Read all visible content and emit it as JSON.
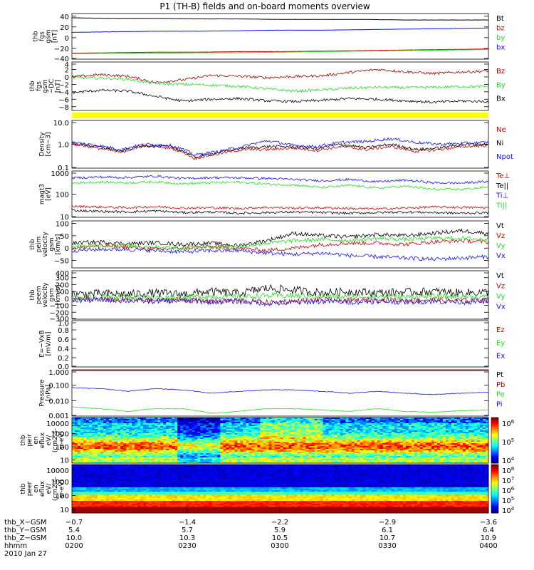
{
  "title": "P1 (TH-B) fields and on-board moments overview",
  "colors": {
    "black": "#000000",
    "red": "#d00000",
    "green": "#22dd22",
    "blue": "#1010ff",
    "darkred": "#9a0000",
    "yellow": "#ffff00"
  },
  "chart_data": [
    {
      "type": "line",
      "id": "fgs",
      "ylabel": [
        "thb",
        "fgs",
        "gsm",
        "[nT]"
      ],
      "yticks": [
        "40",
        "20",
        "0",
        "−20",
        "−40"
      ],
      "ylim": [
        -40,
        45
      ],
      "series": [
        {
          "name": "Bt",
          "color": "black",
          "values": [
            37,
            36,
            36,
            35,
            35,
            34,
            34,
            34,
            33,
            33,
            33
          ]
        },
        {
          "name": "bz",
          "color": "red",
          "values": [
            -29,
            -28,
            -27,
            -27,
            -26,
            -26,
            -25,
            -24,
            -23,
            -22,
            -21
          ]
        },
        {
          "name": "by",
          "color": "green",
          "values": [
            -30,
            -29,
            -29,
            -28,
            -28,
            -27,
            -26,
            -25,
            -24,
            -23,
            -22
          ]
        },
        {
          "name": "bx",
          "color": "blue",
          "values": [
            10,
            11,
            12,
            12,
            13,
            14,
            14,
            15,
            16,
            17,
            18
          ]
        }
      ]
    },
    {
      "type": "line",
      "id": "fgs-dif",
      "ylabel": [
        "thb",
        "fgs",
        "gsm",
        "−DC",
        "[nT]"
      ],
      "yticks": [
        "4",
        "2",
        "0",
        "−2",
        "−4",
        "−6",
        "−8"
      ],
      "ylim": [
        -9,
        4
      ],
      "series": [
        {
          "name": "Bz",
          "color": "darkred",
          "values": [
            0,
            0.6,
            0.2,
            -1.5,
            -0.8,
            0.4,
            0.2,
            -0.2,
            0.1,
            0.3,
            1.2,
            2.0,
            1.4,
            0.9,
            1.3,
            1.6
          ]
        },
        {
          "name": "By",
          "color": "green",
          "values": [
            -0.2,
            -0.3,
            -0.6,
            -1.8,
            -2.0,
            -2.2,
            -2.5,
            -3.2,
            -3.8,
            -3.5,
            -3.0,
            -2.8,
            -2.9,
            -2.8,
            -2.6,
            -2.6
          ]
        },
        {
          "name": "Bx",
          "color": "black",
          "values": [
            -4.2,
            -3.6,
            -3.8,
            -5.2,
            -6.5,
            -6.0,
            -5.8,
            -6.4,
            -6.6,
            -6.3,
            -5.8,
            -6.0,
            -6.4,
            -6.8,
            -6.5,
            -6.6
          ]
        }
      ]
    },
    {
      "type": "line",
      "id": "density",
      "log": true,
      "ylabel": [
        "Density",
        "[cm−3]"
      ],
      "yticks": [
        "10.0",
        "1.0",
        "0.1"
      ],
      "ylim": [
        0.1,
        10
      ],
      "series": [
        {
          "name": "Ne",
          "color": "red",
          "values": [
            1.0,
            0.7,
            0.45,
            0.85,
            0.7,
            0.25,
            0.4,
            0.6,
            0.6,
            0.7,
            0.55,
            0.8,
            0.6,
            0.8,
            0.5,
            0.6,
            0.8,
            0.9
          ]
        },
        {
          "name": "Ni",
          "color": "black",
          "values": [
            1.1,
            0.8,
            0.5,
            0.9,
            0.8,
            0.28,
            0.45,
            0.7,
            0.8,
            0.8,
            0.65,
            1.0,
            0.7,
            1.0,
            0.6,
            0.7,
            1.0,
            1.0
          ]
        },
        {
          "name": "Npot",
          "color": "blue",
          "values": [
            1.2,
            0.9,
            0.6,
            1.0,
            0.9,
            0.35,
            0.5,
            0.8,
            1.4,
            0.9,
            0.8,
            1.2,
            1.3,
            1.7,
            1.2,
            1.0,
            1.1,
            1.2
          ]
        }
      ]
    },
    {
      "type": "line",
      "id": "temperature",
      "log": true,
      "ylabel": [
        "magt3",
        "[eV]"
      ],
      "yticks": [
        "1000",
        "100",
        "10"
      ],
      "ylim": [
        10,
        1000
      ],
      "series": [
        {
          "name": "Te⊥",
          "color": "red",
          "values": [
            30,
            28,
            26,
            29,
            25,
            26,
            24,
            27,
            25,
            26,
            24,
            23,
            25,
            28,
            27,
            26
          ]
        },
        {
          "name": "Te||",
          "color": "black",
          "values": [
            20,
            18,
            17,
            19,
            16,
            17,
            15,
            16,
            17,
            16,
            15,
            16,
            17,
            16,
            15,
            16
          ]
        },
        {
          "name": "Ti⊥",
          "color": "blue",
          "values": [
            500,
            550,
            520,
            600,
            470,
            520,
            510,
            480,
            430,
            380,
            430,
            340,
            400,
            310,
            300,
            350
          ]
        },
        {
          "name": "Ti||",
          "color": "green",
          "values": [
            300,
            330,
            310,
            340,
            280,
            310,
            330,
            270,
            250,
            190,
            240,
            180,
            220,
            160,
            160,
            200
          ]
        }
      ]
    },
    {
      "type": "line",
      "id": "peim-velocity",
      "ylabel": [
        "thb",
        "peim",
        "velocity",
        "gsm",
        "[km/s]"
      ],
      "yticks": [
        "100",
        "50",
        "0",
        "−50"
      ],
      "ylim": [
        -80,
        110
      ],
      "series": [
        {
          "name": "Vt",
          "color": "black",
          "values": [
            20,
            25,
            18,
            22,
            15,
            20,
            10,
            30,
            60,
            50,
            45,
            55,
            50,
            60,
            70,
            60
          ]
        },
        {
          "name": "Vz",
          "color": "red",
          "values": [
            0,
            10,
            5,
            -5,
            0,
            5,
            0,
            -10,
            0,
            15,
            20,
            20,
            15,
            25,
            30,
            25
          ]
        },
        {
          "name": "Vy",
          "color": "green",
          "values": [
            5,
            10,
            10,
            5,
            0,
            5,
            5,
            20,
            30,
            35,
            30,
            40,
            35,
            40,
            40,
            35
          ]
        },
        {
          "name": "Vx",
          "color": "blue",
          "values": [
            -10,
            -5,
            -5,
            -10,
            -15,
            -10,
            -10,
            -20,
            -25,
            -20,
            -30,
            -35,
            -40,
            -45,
            -40,
            -35
          ]
        }
      ]
    },
    {
      "type": "line",
      "id": "peem-velocity",
      "ylabel": [
        "thb",
        "peem",
        "velocity",
        "gsm",
        "[km/s]"
      ],
      "yticks": [
        "400",
        "300",
        "200",
        "100",
        "0",
        "−100",
        "−200",
        "−300"
      ],
      "ylim": [
        -300,
        400
      ],
      "series": [
        {
          "name": "Vt",
          "color": "black",
          "values": [
            60,
            70,
            60,
            80,
            60,
            100,
            70,
            150,
            120,
            80,
            100,
            80,
            90,
            100,
            80,
            90
          ]
        },
        {
          "name": "Vz",
          "color": "red",
          "values": [
            -20,
            -10,
            -20,
            -30,
            -20,
            -40,
            -30,
            -60,
            -40,
            -20,
            -30,
            -20,
            -30,
            -20,
            -30,
            -20
          ]
        },
        {
          "name": "Vy",
          "color": "green",
          "values": [
            10,
            20,
            20,
            10,
            20,
            30,
            20,
            40,
            40,
            30,
            20,
            30,
            20,
            30,
            30,
            20
          ]
        },
        {
          "name": "Vx",
          "color": "blue",
          "values": [
            -30,
            -20,
            -30,
            -40,
            -30,
            -50,
            -40,
            -70,
            -60,
            -40,
            -50,
            -40,
            -50,
            -40,
            -50,
            -40
          ]
        }
      ]
    },
    {
      "type": "line",
      "id": "efield",
      "ylabel": [
        "E=−VxB",
        "[mV/m]"
      ],
      "yticks": [
        "1.0",
        "0.8",
        "0.6",
        "0.4",
        "0.2",
        "0.0"
      ],
      "ylim": [
        0,
        1
      ],
      "series": [
        {
          "name": "Ez",
          "color": "red",
          "values": []
        },
        {
          "name": "Ey",
          "color": "green",
          "values": []
        },
        {
          "name": "Ex",
          "color": "blue",
          "values": []
        }
      ]
    },
    {
      "type": "line",
      "id": "pressure",
      "log": true,
      "ylabel": [
        "Pressure",
        "[nPa]"
      ],
      "yticks": [
        "1.000",
        "0.100",
        "0.010",
        "0.001"
      ],
      "ylim": [
        0.001,
        1.0
      ],
      "series": [
        {
          "name": "Pt",
          "color": "black",
          "values": [
            1.0,
            1.0,
            1.0,
            1.0,
            1.0,
            0.95,
            0.95,
            0.95,
            0.95,
            0.95,
            0.95,
            0.95,
            0.95,
            0.95,
            0.95,
            0.95
          ]
        },
        {
          "name": "Pb",
          "color": "darkred",
          "values": [
            0.95,
            0.95,
            0.95,
            0.95,
            0.95,
            0.93,
            0.93,
            0.92,
            0.92,
            0.92,
            0.92,
            0.92,
            0.92,
            0.92,
            0.92,
            0.92
          ]
        },
        {
          "name": "Pe",
          "color": "green",
          "values": [
            0.004,
            0.003,
            0.002,
            0.003,
            0.003,
            0.0015,
            0.002,
            0.003,
            0.003,
            0.0025,
            0.002,
            0.003,
            0.002,
            0.0018,
            0.0022,
            0.0025
          ]
        },
        {
          "name": "Pi",
          "color": "blue",
          "values": [
            0.07,
            0.06,
            0.04,
            0.06,
            0.05,
            0.03,
            0.04,
            0.05,
            0.05,
            0.04,
            0.03,
            0.04,
            0.03,
            0.025,
            0.03,
            0.035
          ]
        }
      ]
    },
    {
      "type": "heatmap",
      "id": "peir",
      "ylabel": [
        "thb",
        "peir",
        "en",
        "eflux",
        "eV/",
        "(cm2-s-",
        "sr-eV)"
      ],
      "yticks": [
        "10000",
        "1000",
        "100",
        "10"
      ],
      "colorbar_ticks": [
        "10",
        "10",
        "10"
      ],
      "colorbar_exps": [
        "6",
        "5",
        "4"
      ]
    },
    {
      "type": "heatmap",
      "id": "peer",
      "ylabel": [
        "thb",
        "peer",
        "en",
        "eflux",
        "eV/",
        "(cm2-s-",
        "sr-eV)"
      ],
      "yticks": [
        "10000",
        "1000",
        "100",
        "10"
      ],
      "colorbar_ticks": [
        "10",
        "10",
        "10",
        "10",
        "10"
      ],
      "colorbar_exps": [
        "8",
        "7",
        "6",
        "5",
        "4"
      ]
    }
  ],
  "time_axis": {
    "rows": [
      {
        "label": "thb_X−GSM",
        "values": [
          "−0.7",
          "−1.4",
          "−2.2",
          "−2.9",
          "−3.6"
        ]
      },
      {
        "label": "thb_Y−GSM",
        "values": [
          "5.4",
          "5.7",
          "5.9",
          "6.1",
          "6.4"
        ]
      },
      {
        "label": "thb_Z−GSM",
        "values": [
          "10.0",
          "10.3",
          "10.5",
          "10.7",
          "10.9"
        ]
      },
      {
        "label": "hhmm",
        "values": [
          "0200",
          "0230",
          "0300",
          "0330",
          "0400"
        ]
      }
    ],
    "date": "2010 Jan 27"
  }
}
